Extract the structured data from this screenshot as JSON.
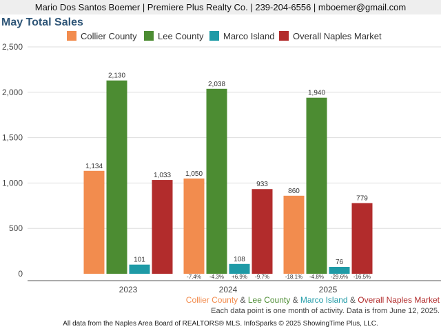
{
  "header": {
    "contact": "Mario Dos Santos Boemer | Premiere Plus Realty Co. | 239-204-6556 | mboemer@gmail.com"
  },
  "chart_data": {
    "type": "bar",
    "title": "May Total Sales",
    "xlabel": "",
    "ylabel": "",
    "categories": [
      "2023",
      "2024",
      "2025"
    ],
    "ylim": [
      0,
      2500
    ],
    "yticks": [
      "2,500",
      "2,000",
      "1,500",
      "1,000",
      "500",
      "0"
    ],
    "ytick_values": [
      2500,
      2000,
      1500,
      1000,
      500,
      0
    ],
    "grid": true,
    "legend_position": "top",
    "series": [
      {
        "name": "Collier County",
        "color": "#f28c4e",
        "values": [
          1134,
          1050,
          860
        ],
        "value_labels": [
          "1,134",
          "1,050",
          "860"
        ],
        "change_labels": [
          "",
          "-7.4%",
          "-18.1%"
        ]
      },
      {
        "name": "Lee County",
        "color": "#4c8c32",
        "values": [
          2130,
          2038,
          1940
        ],
        "value_labels": [
          "2,130",
          "2,038",
          "1,940"
        ],
        "change_labels": [
          "",
          "-4.3%",
          "-4.8%"
        ]
      },
      {
        "name": "Marco Island",
        "color": "#1e9aa6",
        "values": [
          101,
          108,
          76
        ],
        "value_labels": [
          "101",
          "108",
          "76"
        ],
        "change_labels": [
          "",
          "+6.9%",
          "-29.6%"
        ]
      },
      {
        "name": "Overall Naples Market",
        "color": "#b22c2c",
        "values": [
          1033,
          933,
          779
        ],
        "value_labels": [
          "1,033",
          "933",
          "779"
        ],
        "change_labels": [
          "",
          "-9.7%",
          "-16.5%"
        ]
      }
    ]
  },
  "footer": {
    "series_names": [
      "Collier County",
      "Lee County",
      "Marco Island",
      "Overall Naples Market"
    ],
    "separator": " & ",
    "note": "Each data point is one month of activity. Data is from June 12, 2025.",
    "source": "All data from the Naples Area Board of REALTORS® MLS. InfoSparks © 2025 ShowingTime Plus, LLC."
  }
}
